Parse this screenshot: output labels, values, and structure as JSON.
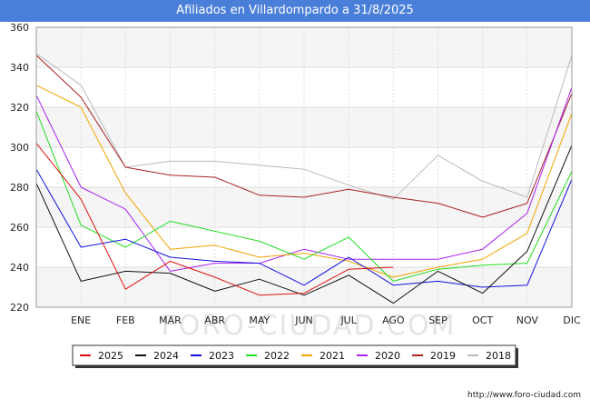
{
  "chart_data": {
    "type": "line",
    "title": "Afiliados en Villardompardo a 31/8/2025",
    "categories": [
      "",
      "ENE",
      "FEB",
      "MAR",
      "ABR",
      "MAY",
      "JUN",
      "JUL",
      "AGO",
      "SEP",
      "OCT",
      "NOV",
      "DIC"
    ],
    "ylim": [
      220,
      360
    ],
    "yticks": [
      220,
      240,
      260,
      280,
      300,
      320,
      340,
      360
    ],
    "series": [
      {
        "name": "2025",
        "color": "#dd1111",
        "values": [
          302,
          274,
          229,
          243,
          235,
          226,
          227,
          239,
          240,
          null,
          null,
          null,
          null
        ]
      },
      {
        "name": "2024",
        "color": "#111111",
        "values": [
          282,
          233,
          238,
          237,
          228,
          234,
          226,
          236,
          222,
          238,
          227,
          248,
          301
        ]
      },
      {
        "name": "2023",
        "color": "#1111dd",
        "values": [
          289,
          250,
          254,
          245,
          243,
          242,
          231,
          245,
          231,
          233,
          230,
          231,
          284
        ]
      },
      {
        "name": "2022",
        "color": "#22dd22",
        "values": [
          318,
          261,
          250,
          263,
          258,
          253,
          244,
          255,
          233,
          239,
          241,
          242,
          288
        ]
      },
      {
        "name": "2021",
        "color": "#f0a500",
        "values": [
          331,
          320,
          277,
          249,
          251,
          245,
          247,
          243,
          235,
          240,
          244,
          257,
          317
        ]
      },
      {
        "name": "2020",
        "color": "#aa22ee",
        "values": [
          326,
          280,
          269,
          238,
          242,
          242,
          249,
          244,
          244,
          244,
          249,
          267,
          330
        ]
      },
      {
        "name": "2019",
        "color": "#aa2222",
        "values": [
          346,
          325,
          290,
          286,
          285,
          276,
          275,
          279,
          275,
          272,
          265,
          272,
          327
        ]
      },
      {
        "name": "2018",
        "color": "#bbbbbb",
        "values": [
          347,
          331,
          290,
          293,
          293,
          291,
          289,
          281,
          274,
          296,
          283,
          275,
          346
        ]
      }
    ]
  },
  "watermark": "FORO-CIUDAD.COM",
  "footer": "http://www.foro-ciudad.com"
}
